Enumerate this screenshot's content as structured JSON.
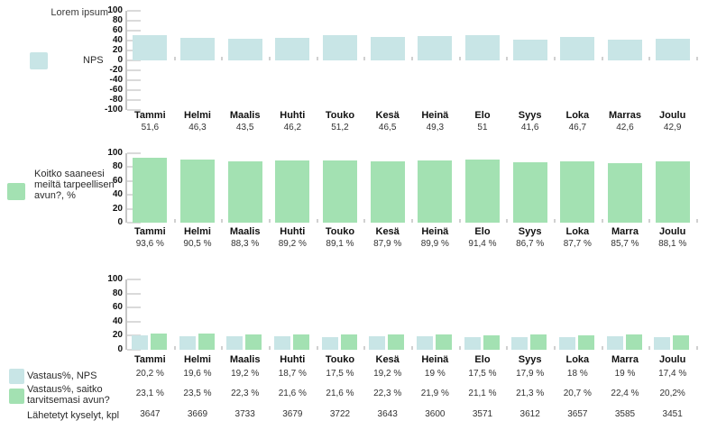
{
  "colors": {
    "bar_blue": "#c8e5e6",
    "bar_green": "#a3e1b2"
  },
  "chart_data": [
    {
      "type": "bar",
      "title": "Lorem ipsum",
      "legend": [
        "NPS"
      ],
      "legend_position": "left",
      "grid": false,
      "categories": [
        "Tammi",
        "Helmi",
        "Maalis",
        "Huhti",
        "Touko",
        "Kesä",
        "Heinä",
        "Elo",
        "Syys",
        "Loka",
        "Marras",
        "Joulu"
      ],
      "values": [
        51.6,
        46.3,
        43.5,
        46.2,
        51.2,
        46.5,
        49.3,
        51,
        41.6,
        46.7,
        42.6,
        42.9
      ],
      "value_labels": [
        "51,6",
        "46,3",
        "43,5",
        "46,2",
        "51,2",
        "46,5",
        "49,3",
        "51",
        "41,6",
        "46,7",
        "42,6",
        "42,9"
      ],
      "series_color": "bar_blue",
      "xlabel": "",
      "ylabel": "",
      "ylim": [
        -100,
        100
      ],
      "yticks": [
        100,
        80,
        60,
        40,
        20,
        0,
        -20,
        -40,
        -60,
        -80,
        -100
      ]
    },
    {
      "type": "bar",
      "title": "",
      "legend": [
        "Koitko saaneesi meiltä tarpeellisen avun?, %"
      ],
      "legend_position": "left",
      "grid": false,
      "categories": [
        "Tammi",
        "Helmi",
        "Maalis",
        "Huhti",
        "Touko",
        "Kesä",
        "Heinä",
        "Elo",
        "Syys",
        "Loka",
        "Marra",
        "Joulu"
      ],
      "values": [
        93.6,
        90.5,
        88.3,
        89.2,
        89.1,
        87.9,
        89.9,
        91.4,
        86.7,
        87.7,
        85.7,
        88.1
      ],
      "value_labels": [
        "93,6 %",
        "90,5 %",
        "88,3 %",
        "89,2 %",
        "89,1 %",
        "87,9 %",
        "89,9 %",
        "91,4 %",
        "86,7 %",
        "87,7 %",
        "85,7 %",
        "88,1 %"
      ],
      "series_color": "bar_green",
      "xlabel": "",
      "ylabel": "",
      "ylim": [
        0,
        100
      ],
      "yticks": [
        100,
        80,
        60,
        40,
        20,
        0
      ]
    },
    {
      "type": "bar",
      "title": "",
      "legend_position": "left",
      "grid": false,
      "categories": [
        "Tammi",
        "Helmi",
        "Maalis",
        "Huhti",
        "Touko",
        "Kesä",
        "Heinä",
        "Elo",
        "Syys",
        "Loka",
        "Marra",
        "Joulu"
      ],
      "series": [
        {
          "name": "Vastaus%, NPS",
          "color": "bar_blue",
          "values": [
            20.2,
            19.6,
            19.2,
            18.7,
            17.5,
            19.2,
            19,
            17.5,
            17.9,
            18,
            19,
            17.4
          ],
          "value_labels": [
            "20,2 %",
            "19,6 %",
            "19,2 %",
            "18,7 %",
            "17,5 %",
            "19,2 %",
            "19 %",
            "17,5 %",
            "17,9 %",
            "18 %",
            "19 %",
            "17,4 %"
          ]
        },
        {
          "name": "Vastaus%, saitko tarvitsemasi avun?",
          "color": "bar_green",
          "values": [
            23.1,
            23.5,
            22.3,
            21.6,
            21.6,
            22.3,
            21.9,
            21.1,
            21.3,
            20.7,
            22.4,
            20.2
          ],
          "value_labels": [
            "23,1 %",
            "23,5 %",
            "22,3 %",
            "21,6 %",
            "21,6 %",
            "22,3 %",
            "21,9 %",
            "21,1 %",
            "21,3 %",
            "20,7 %",
            "22,4 %",
            "20,2%"
          ]
        }
      ],
      "extra_rows": [
        {
          "name": "Lähetetyt kyselyt, kpl",
          "values": [
            "3647",
            "3669",
            "3733",
            "3679",
            "3722",
            "3643",
            "3600",
            "3571",
            "3612",
            "3657",
            "3585",
            "3451"
          ]
        }
      ],
      "xlabel": "",
      "ylabel": "",
      "ylim": [
        0,
        100
      ],
      "yticks": [
        100,
        80,
        60,
        40,
        20,
        0
      ]
    }
  ]
}
